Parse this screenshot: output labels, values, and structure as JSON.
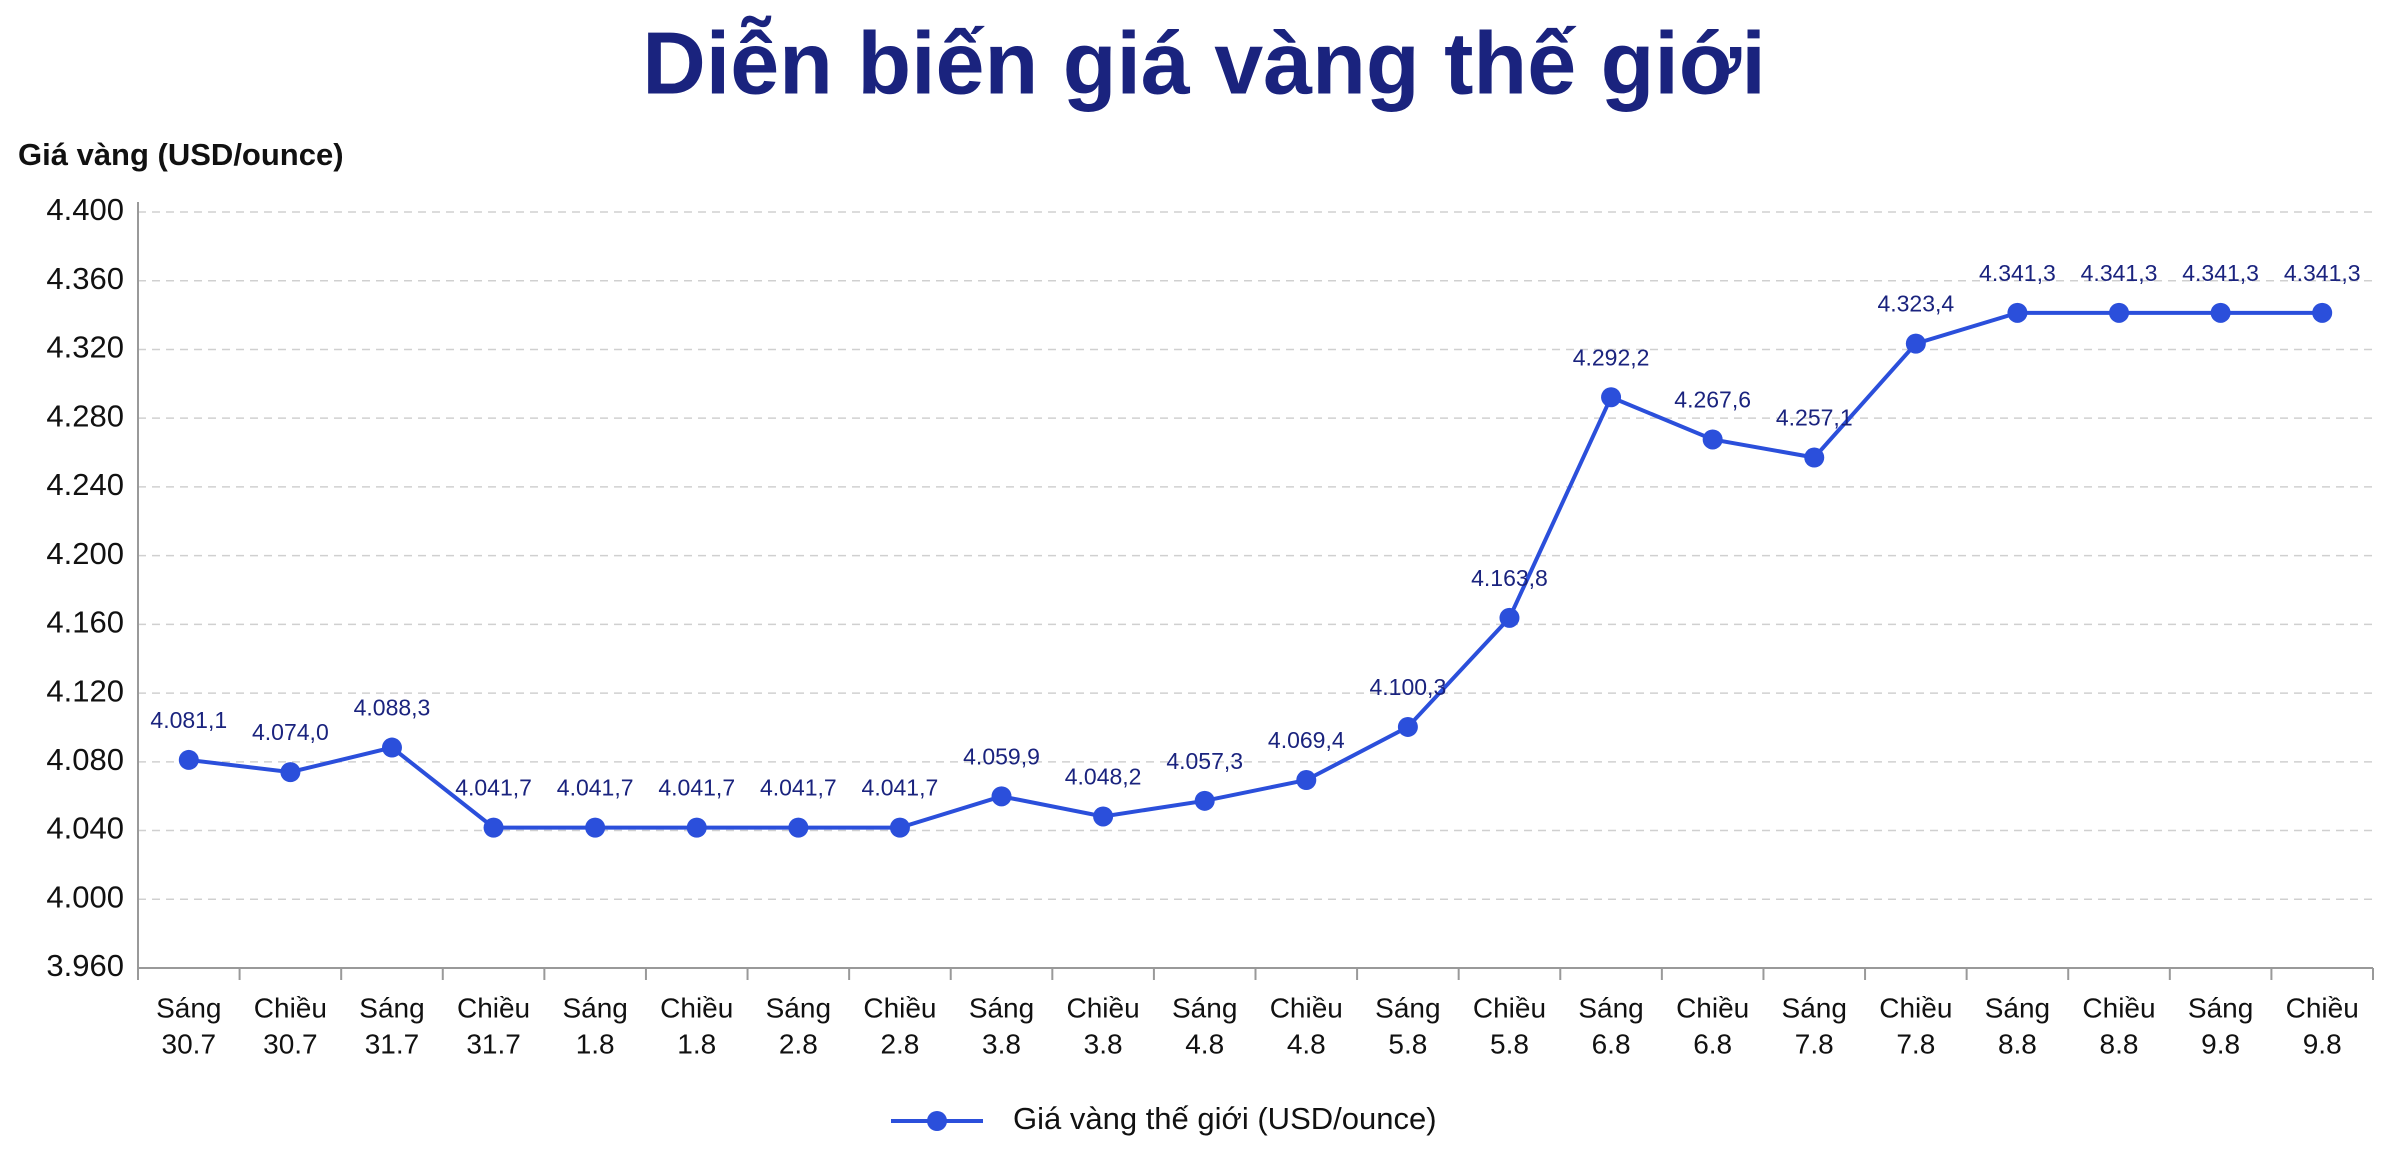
{
  "chart_data": {
    "type": "line",
    "title": "Diễn biến giá vàng thế giới",
    "y_label": "Giá vàng (USD/ounce)",
    "categories": [
      [
        "Sáng",
        "30.7"
      ],
      [
        "Chiều",
        "30.7"
      ],
      [
        "Sáng",
        "31.7"
      ],
      [
        "Chiều",
        "31.7"
      ],
      [
        "Sáng",
        "1.8"
      ],
      [
        "Chiều",
        "1.8"
      ],
      [
        "Sáng",
        "2.8"
      ],
      [
        "Chiều",
        "2.8"
      ],
      [
        "Sáng",
        "3.8"
      ],
      [
        "Chiều",
        "3.8"
      ],
      [
        "Sáng",
        "4.8"
      ],
      [
        "Chiều",
        "4.8"
      ],
      [
        "Sáng",
        "5.8"
      ],
      [
        "Chiều",
        "5.8"
      ],
      [
        "Sáng",
        "6.8"
      ],
      [
        "Chiều",
        "6.8"
      ],
      [
        "Sáng",
        "7.8"
      ],
      [
        "Chiều",
        "7.8"
      ],
      [
        "Sáng",
        "8.8"
      ],
      [
        "Chiều",
        "8.8"
      ],
      [
        "Sáng",
        "9.8"
      ],
      [
        "Chiều",
        "9.8"
      ]
    ],
    "series": [
      {
        "name": "Giá vàng thế giới (USD/ounce)",
        "color": "#2b4fdb",
        "values": [
          4081.1,
          4074.0,
          4088.3,
          4041.7,
          4041.7,
          4041.7,
          4041.7,
          4041.7,
          4059.9,
          4048.2,
          4057.3,
          4069.4,
          4100.3,
          4163.8,
          4292.2,
          4267.6,
          4257.1,
          4323.4,
          4341.3,
          4341.3,
          4341.3,
          4341.3
        ],
        "value_labels": [
          "4.081,1",
          "4.074,0",
          "4.088,3",
          "4.041,7",
          "4.041,7",
          "4.041,7",
          "4.041,7",
          "4.041,7",
          "4.059,9",
          "4.048,2",
          "4.057,3",
          "4.069,4",
          "4.100,3",
          "4.163,8",
          "4.292,2",
          "4.267,6",
          "4.257,1",
          "4.323,4",
          "4.341,3",
          "4.341,3",
          "4.341,3",
          "4.341,3"
        ]
      }
    ],
    "ylim": [
      3960,
      4400
    ],
    "yticks": [
      {
        "value": 3960,
        "label": "3.960"
      },
      {
        "value": 4000,
        "label": "4.000"
      },
      {
        "value": 4040,
        "label": "4.040"
      },
      {
        "value": 4080,
        "label": "4.080"
      },
      {
        "value": 4120,
        "label": "4.120"
      },
      {
        "value": 4160,
        "label": "4.160"
      },
      {
        "value": 4200,
        "label": "4.200"
      },
      {
        "value": 4240,
        "label": "4.240"
      },
      {
        "value": 4280,
        "label": "4.280"
      },
      {
        "value": 4320,
        "label": "4.320"
      },
      {
        "value": 4360,
        "label": "4.360"
      },
      {
        "value": 4400,
        "label": "4.400"
      }
    ],
    "grid": true,
    "legend": "bottom"
  }
}
